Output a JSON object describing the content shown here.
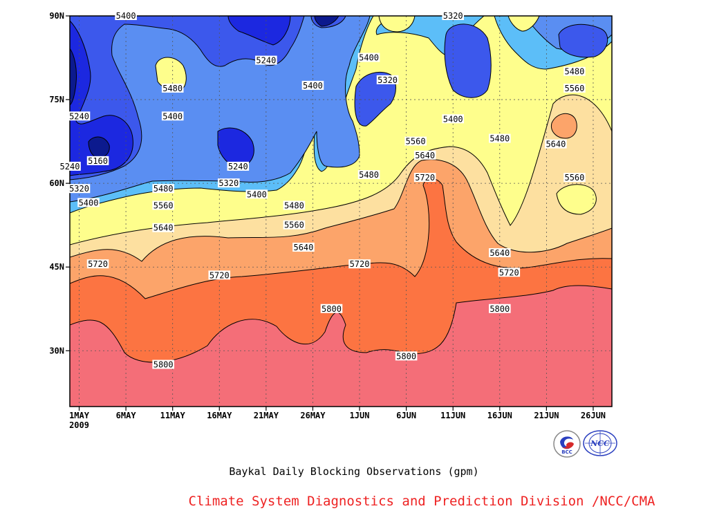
{
  "chart_data": {
    "type": "contour",
    "title": "Baykal Daily Blocking Observations (gpm)",
    "x_tick_labels": [
      "1MAY",
      "6MAY",
      "11MAY",
      "16MAY",
      "21MAY",
      "26MAY",
      "1JUN",
      "6JUN",
      "11JUN",
      "16JUN",
      "21JUN",
      "26JUN"
    ],
    "x_year_label": "2009",
    "y_tick_labels": [
      "30N",
      "45N",
      "60N",
      "75N",
      "90N"
    ],
    "y_ticks": [
      30,
      45,
      60,
      75,
      90
    ],
    "ylim": [
      20,
      90
    ],
    "xlim_days": [
      "2009-04-30",
      "2009-06-27"
    ],
    "contour_levels": [
      5160,
      5240,
      5320,
      5400,
      5480,
      5560,
      5640,
      5720,
      5800
    ],
    "fill_colors": [
      "#0c1a8e",
      "#1c28e0",
      "#3c58ec",
      "#5a8ef2",
      "#5cbef8",
      "#fefe8c",
      "#fde0a0",
      "#fca46a",
      "#fc7442",
      "#f46e78"
    ],
    "contour_labels": [
      {
        "text": "5400",
        "x": "2009-05-06",
        "y": 90
      },
      {
        "text": "5320",
        "x": "2009-06-10",
        "y": 90
      },
      {
        "text": "5240",
        "x": "2009-05-21",
        "y": 82
      },
      {
        "text": "5400",
        "x": "2009-06-01",
        "y": 82.5
      },
      {
        "text": "5480",
        "x": "2009-05-11",
        "y": 77
      },
      {
        "text": "5400",
        "x": "2009-05-26",
        "y": 77.5
      },
      {
        "text": "5320",
        "x": "2009-06-03",
        "y": 78.5
      },
      {
        "text": "5480",
        "x": "2009-06-23",
        "y": 80
      },
      {
        "text": "5560",
        "x": "2009-06-23",
        "y": 77
      },
      {
        "text": "5240",
        "x": "2009-05-01",
        "y": 72
      },
      {
        "text": "5400",
        "x": "2009-05-11",
        "y": 72
      },
      {
        "text": "5400",
        "x": "2009-06-10",
        "y": 71.5
      },
      {
        "text": "5480",
        "x": "2009-06-15",
        "y": 68
      },
      {
        "text": "5640",
        "x": "2009-06-21",
        "y": 67
      },
      {
        "text": "5560",
        "x": "2009-06-06",
        "y": 67.5
      },
      {
        "text": "5160",
        "x": "2009-05-03",
        "y": 64
      },
      {
        "text": "5640",
        "x": "2009-06-07",
        "y": 65
      },
      {
        "text": "5240",
        "x": "2009-04-30",
        "y": 63
      },
      {
        "text": "5240",
        "x": "2009-05-18",
        "y": 63
      },
      {
        "text": "5480",
        "x": "2009-06-01",
        "y": 61.5
      },
      {
        "text": "5720",
        "x": "2009-06-07",
        "y": 61
      },
      {
        "text": "5560",
        "x": "2009-06-23",
        "y": 61
      },
      {
        "text": "5320",
        "x": "2009-05-01",
        "y": 59
      },
      {
        "text": "5480",
        "x": "2009-05-10",
        "y": 59
      },
      {
        "text": "5320",
        "x": "2009-05-17",
        "y": 60
      },
      {
        "text": "5400",
        "x": "2009-05-20",
        "y": 58
      },
      {
        "text": "5400",
        "x": "2009-05-02",
        "y": 56.5
      },
      {
        "text": "5560",
        "x": "2009-05-10",
        "y": 56
      },
      {
        "text": "5480",
        "x": "2009-05-24",
        "y": 56
      },
      {
        "text": "5560",
        "x": "2009-05-24",
        "y": 52.5
      },
      {
        "text": "5640",
        "x": "2009-05-10",
        "y": 52
      },
      {
        "text": "5640",
        "x": "2009-05-25",
        "y": 48.5
      },
      {
        "text": "5640",
        "x": "2009-06-15",
        "y": 47.5
      },
      {
        "text": "5720",
        "x": "2009-05-03",
        "y": 45.5
      },
      {
        "text": "5720",
        "x": "2009-05-31",
        "y": 45.5
      },
      {
        "text": "5720",
        "x": "2009-05-16",
        "y": 43.5
      },
      {
        "text": "5720",
        "x": "2009-06-16",
        "y": 44
      },
      {
        "text": "5800",
        "x": "2009-05-28",
        "y": 37.5
      },
      {
        "text": "5800",
        "x": "2009-06-15",
        "y": 37.5
      },
      {
        "text": "5800",
        "x": "2009-06-05",
        "y": 29
      },
      {
        "text": "5800",
        "x": "2009-05-10",
        "y": 27.5
      }
    ],
    "grid": true
  },
  "caption": "Baykal Daily Blocking Observations (gpm)",
  "credit": "Climate System Diagnostics and Prediction Division /NCC/CMA",
  "logos": {
    "left": "BCC",
    "right": "NCC"
  },
  "logo_colors": {
    "blue": "#2a3fbf",
    "red": "#d62a2a"
  }
}
